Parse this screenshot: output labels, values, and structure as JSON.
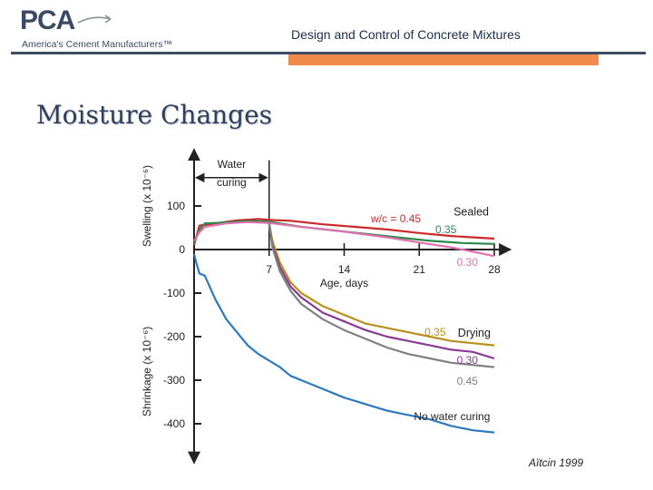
{
  "header": {
    "logo_text": "PCA",
    "logo_tagline": "America's Cement Manufacturers™",
    "title": "Design and Control of Concrete Mixtures"
  },
  "slide": {
    "title": "Moisture Changes",
    "credit": "Aïtcin 1999"
  },
  "colors": {
    "accent_orange": "#f08a4b",
    "brand_navy": "#3d4b63"
  },
  "chart_data": {
    "type": "line",
    "xlabel": "Age, days",
    "ylabel_top": "Swelling (x 10⁻⁶)",
    "ylabel_bottom": "Shrinkage (x 10⁻⁶)",
    "xlim": [
      0,
      29.5
    ],
    "ylim": [
      -490,
      230
    ],
    "x_ticks": [
      7,
      14,
      21,
      28
    ],
    "y_ticks": [
      100,
      0,
      -100,
      -200,
      -300,
      -400
    ],
    "annotations": {
      "curing": "Water curing",
      "curing_line2": "curing",
      "curing_end_day": 7,
      "sealed": "Sealed",
      "drying": "Drying"
    },
    "series": [
      {
        "name": "w/c = 0.45",
        "group": "Sealed",
        "color": "#cc2a2a",
        "points": [
          [
            0,
            10
          ],
          [
            0.5,
            55
          ],
          [
            2,
            60
          ],
          [
            4,
            67
          ],
          [
            6,
            70
          ],
          [
            7,
            68
          ],
          [
            9,
            66
          ],
          [
            12,
            58
          ],
          [
            15,
            52
          ],
          [
            18,
            46
          ],
          [
            21,
            38
          ],
          [
            24,
            31
          ],
          [
            28,
            25
          ]
        ]
      },
      {
        "name": "0.35",
        "group": "Sealed",
        "color": "#2a8a4a",
        "points": [
          [
            0,
            15
          ],
          [
            0.5,
            45
          ],
          [
            1,
            60
          ],
          [
            3,
            62
          ],
          [
            5,
            66
          ],
          [
            7,
            64
          ],
          [
            10,
            52
          ],
          [
            13,
            44
          ],
          [
            16,
            36
          ],
          [
            19,
            28
          ],
          [
            22,
            20
          ],
          [
            25,
            15
          ],
          [
            28,
            13
          ]
        ]
      },
      {
        "name": "0.30",
        "group": "Sealed",
        "color": "#e070b0",
        "points": [
          [
            0,
            20
          ],
          [
            0.5,
            40
          ],
          [
            1,
            52
          ],
          [
            3,
            60
          ],
          [
            5,
            63
          ],
          [
            7,
            61
          ],
          [
            10,
            52
          ],
          [
            14,
            41
          ],
          [
            18,
            28
          ],
          [
            21,
            16
          ],
          [
            24,
            5
          ],
          [
            26,
            -5
          ],
          [
            28,
            -15
          ]
        ]
      },
      {
        "name": "0.35",
        "group": "Drying",
        "color": "#b8901e",
        "points": [
          [
            7,
            60
          ],
          [
            7.3,
            20
          ],
          [
            8,
            -30
          ],
          [
            9,
            -75
          ],
          [
            10,
            -100
          ],
          [
            12,
            -130
          ],
          [
            14,
            -150
          ],
          [
            16,
            -170
          ],
          [
            18,
            -180
          ],
          [
            20,
            -190
          ],
          [
            22,
            -200
          ],
          [
            24,
            -210
          ],
          [
            26,
            -215
          ],
          [
            28,
            -220
          ]
        ]
      },
      {
        "name": "0.30",
        "group": "Drying",
        "color": "#8a3a94",
        "points": [
          [
            7,
            60
          ],
          [
            7.3,
            10
          ],
          [
            8,
            -40
          ],
          [
            9,
            -85
          ],
          [
            10,
            -110
          ],
          [
            12,
            -145
          ],
          [
            14,
            -165
          ],
          [
            16,
            -185
          ],
          [
            18,
            -200
          ],
          [
            20,
            -210
          ],
          [
            22,
            -220
          ],
          [
            24,
            -230
          ],
          [
            26,
            -235
          ],
          [
            28,
            -250
          ]
        ]
      },
      {
        "name": "0.45",
        "group": "Drying",
        "color": "#808080",
        "points": [
          [
            7,
            60
          ],
          [
            7.3,
            5
          ],
          [
            8,
            -50
          ],
          [
            9,
            -95
          ],
          [
            10,
            -125
          ],
          [
            12,
            -160
          ],
          [
            14,
            -185
          ],
          [
            16,
            -205
          ],
          [
            18,
            -225
          ],
          [
            20,
            -240
          ],
          [
            22,
            -250
          ],
          [
            24,
            -260
          ],
          [
            26,
            -265
          ],
          [
            28,
            -270
          ]
        ]
      },
      {
        "name": "No water curing",
        "group": "",
        "color": "#2e78c0",
        "points": [
          [
            0,
            -10
          ],
          [
            0.2,
            -30
          ],
          [
            0.5,
            -55
          ],
          [
            1,
            -60
          ],
          [
            2,
            -115
          ],
          [
            3,
            -160
          ],
          [
            4,
            -190
          ],
          [
            5,
            -220
          ],
          [
            6,
            -240
          ],
          [
            7,
            -255
          ],
          [
            8,
            -270
          ],
          [
            9,
            -290
          ],
          [
            10,
            -300
          ],
          [
            12,
            -320
          ],
          [
            14,
            -340
          ],
          [
            16,
            -355
          ],
          [
            18,
            -370
          ],
          [
            20,
            -380
          ],
          [
            22,
            -390
          ],
          [
            24,
            -405
          ],
          [
            26,
            -415
          ],
          [
            28,
            -420
          ]
        ]
      }
    ]
  }
}
